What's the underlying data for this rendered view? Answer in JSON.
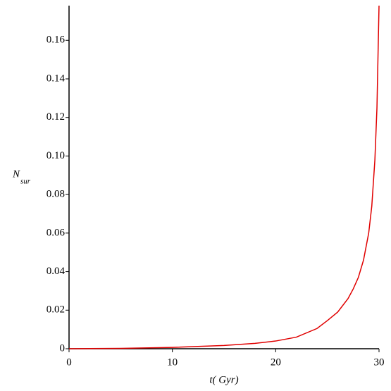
{
  "chart_data": {
    "type": "line",
    "x_label": "t( Gyr)",
    "y_label": "N",
    "y_label_sub": "sur",
    "x": [
      0,
      5,
      10,
      15,
      18,
      20,
      22,
      24,
      25,
      26,
      27,
      27.5,
      28,
      28.5,
      29,
      29.3,
      29.6,
      29.8,
      30
    ],
    "series": [
      {
        "color": "#e00000",
        "values": [
          0,
          0.0002,
          0.0007,
          0.0017,
          0.0028,
          0.004,
          0.006,
          0.0105,
          0.0146,
          0.019,
          0.026,
          0.031,
          0.037,
          0.046,
          0.06,
          0.074,
          0.098,
          0.125,
          0.178
        ]
      }
    ],
    "xlim": [
      0,
      30
    ],
    "ylim": [
      0,
      0.178
    ],
    "xticks": [
      0,
      10,
      20,
      30
    ],
    "yticks": [
      0,
      0.02,
      0.04,
      0.06,
      0.08,
      {
        "value": 0.1,
        "label": "0.10"
      },
      0.12,
      0.14,
      0.16
    ]
  }
}
